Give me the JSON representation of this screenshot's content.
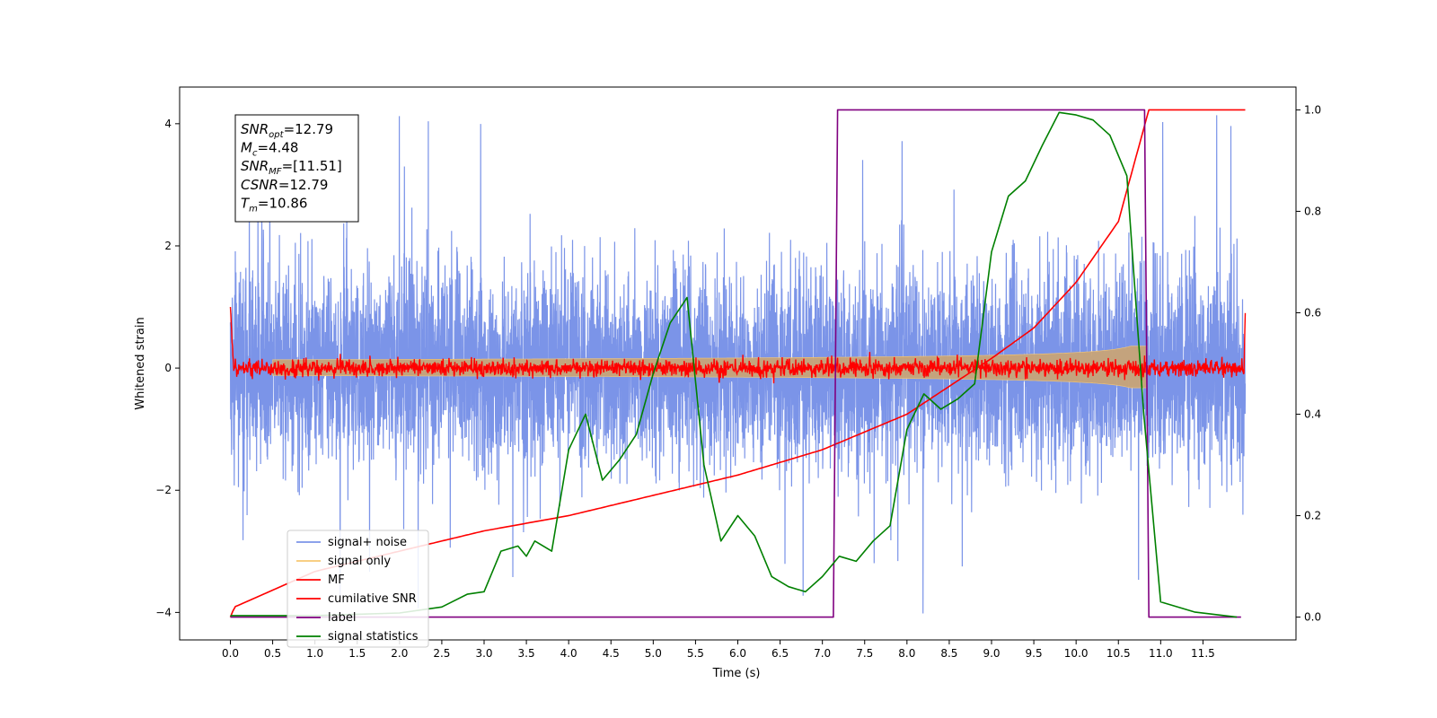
{
  "chart_data": {
    "type": "line",
    "xlabel": "Time (s)",
    "ylabel": "Whitened strain",
    "x_ticks": [
      "0.0",
      "0.5",
      "1.0",
      "1.5",
      "2.0",
      "2.5",
      "3.0",
      "3.5",
      "4.0",
      "4.5",
      "5.0",
      "5.5",
      "6.0",
      "6.5",
      "7.0",
      "7.5",
      "8.0",
      "8.5",
      "9.0",
      "9.5",
      "10.0",
      "10.5",
      "11.0",
      "11.5"
    ],
    "y_ticks_left": [
      "4",
      "2",
      "0",
      "−2",
      "−4"
    ],
    "y_ticks_right": [
      "1.0",
      "0.8",
      "0.6",
      "0.4",
      "0.2",
      "0.0"
    ],
    "xlim": [
      -0.6,
      12.6
    ],
    "ylim_left": [
      -4.45,
      4.6
    ],
    "ylim_right": [
      -0.045,
      1.045
    ],
    "grid": false,
    "legend_position": "lower-left",
    "colors": {
      "signal_noise": "#7b94e8",
      "signal_only": "#f7c873",
      "mf": "#ff0000",
      "cumulative_snr": "#ff0000",
      "label": "#800080",
      "signal_statistics": "#008000"
    },
    "info_box": [
      {
        "sym": "SNR",
        "sub": "opt",
        "val": "=12.79"
      },
      {
        "sym": "M",
        "sub": "c",
        "val": "=4.48"
      },
      {
        "sym": "SNR",
        "sub": "MF",
        "val": "=[11.51]"
      },
      {
        "sym": "CSNR",
        "sub": "",
        "val": "=12.79"
      },
      {
        "sym": "T",
        "sub": "m",
        "val": "=10.86"
      }
    ],
    "series": [
      {
        "name": "signal+ noise",
        "axis": "left",
        "kind": "noise",
        "x_range": [
          0,
          12
        ],
        "amplitude_typical": 1.3,
        "amplitude_max": 4.2
      },
      {
        "name": "signal only",
        "axis": "left",
        "kind": "chirp",
        "x_range": [
          0,
          10.86
        ],
        "envelope_max": 0.75
      },
      {
        "name": "MF",
        "axis": "left",
        "kind": "noise",
        "x_range": [
          0,
          12
        ],
        "amplitude_typical": 0.1,
        "amplitude_max": 1.0
      },
      {
        "name": "cumilative SNR",
        "axis": "right",
        "kind": "curve",
        "points": [
          [
            0,
            0
          ],
          [
            0.05,
            0.02
          ],
          [
            1,
            0.09
          ],
          [
            2,
            0.13
          ],
          [
            3,
            0.17
          ],
          [
            4,
            0.2
          ],
          [
            5,
            0.24
          ],
          [
            6,
            0.28
          ],
          [
            7,
            0.33
          ],
          [
            8,
            0.4
          ],
          [
            9,
            0.51
          ],
          [
            9.5,
            0.57
          ],
          [
            10,
            0.66
          ],
          [
            10.5,
            0.78
          ],
          [
            10.86,
            1.0
          ],
          [
            12,
            1.0
          ]
        ]
      },
      {
        "name": "label",
        "axis": "right",
        "kind": "step",
        "points": [
          [
            0,
            0
          ],
          [
            7.13,
            0
          ],
          [
            7.18,
            1.0
          ],
          [
            10.81,
            1.0
          ],
          [
            10.86,
            0
          ],
          [
            11.95,
            0
          ]
        ]
      },
      {
        "name": "signal statistics",
        "axis": "right",
        "kind": "curve",
        "points": [
          [
            0,
            0.003
          ],
          [
            1,
            0.003
          ],
          [
            2,
            0.008
          ],
          [
            2.5,
            0.02
          ],
          [
            2.8,
            0.045
          ],
          [
            3.0,
            0.05
          ],
          [
            3.2,
            0.13
          ],
          [
            3.4,
            0.14
          ],
          [
            3.5,
            0.12
          ],
          [
            3.6,
            0.15
          ],
          [
            3.8,
            0.13
          ],
          [
            4.0,
            0.33
          ],
          [
            4.2,
            0.4
          ],
          [
            4.4,
            0.27
          ],
          [
            4.6,
            0.31
          ],
          [
            4.8,
            0.36
          ],
          [
            5.0,
            0.48
          ],
          [
            5.2,
            0.58
          ],
          [
            5.4,
            0.63
          ],
          [
            5.6,
            0.3
          ],
          [
            5.8,
            0.15
          ],
          [
            6.0,
            0.2
          ],
          [
            6.2,
            0.16
          ],
          [
            6.4,
            0.08
          ],
          [
            6.6,
            0.06
          ],
          [
            6.8,
            0.05
          ],
          [
            7.0,
            0.08
          ],
          [
            7.2,
            0.12
          ],
          [
            7.4,
            0.11
          ],
          [
            7.6,
            0.15
          ],
          [
            7.8,
            0.18
          ],
          [
            8.0,
            0.37
          ],
          [
            8.2,
            0.44
          ],
          [
            8.4,
            0.41
          ],
          [
            8.6,
            0.43
          ],
          [
            8.8,
            0.46
          ],
          [
            9.0,
            0.72
          ],
          [
            9.2,
            0.83
          ],
          [
            9.4,
            0.86
          ],
          [
            9.6,
            0.93
          ],
          [
            9.8,
            0.995
          ],
          [
            10.0,
            0.99
          ],
          [
            10.2,
            0.98
          ],
          [
            10.4,
            0.95
          ],
          [
            10.6,
            0.87
          ],
          [
            10.8,
            0.4
          ],
          [
            11.0,
            0.03
          ],
          [
            11.4,
            0.01
          ],
          [
            11.9,
            0.0
          ]
        ]
      }
    ]
  }
}
